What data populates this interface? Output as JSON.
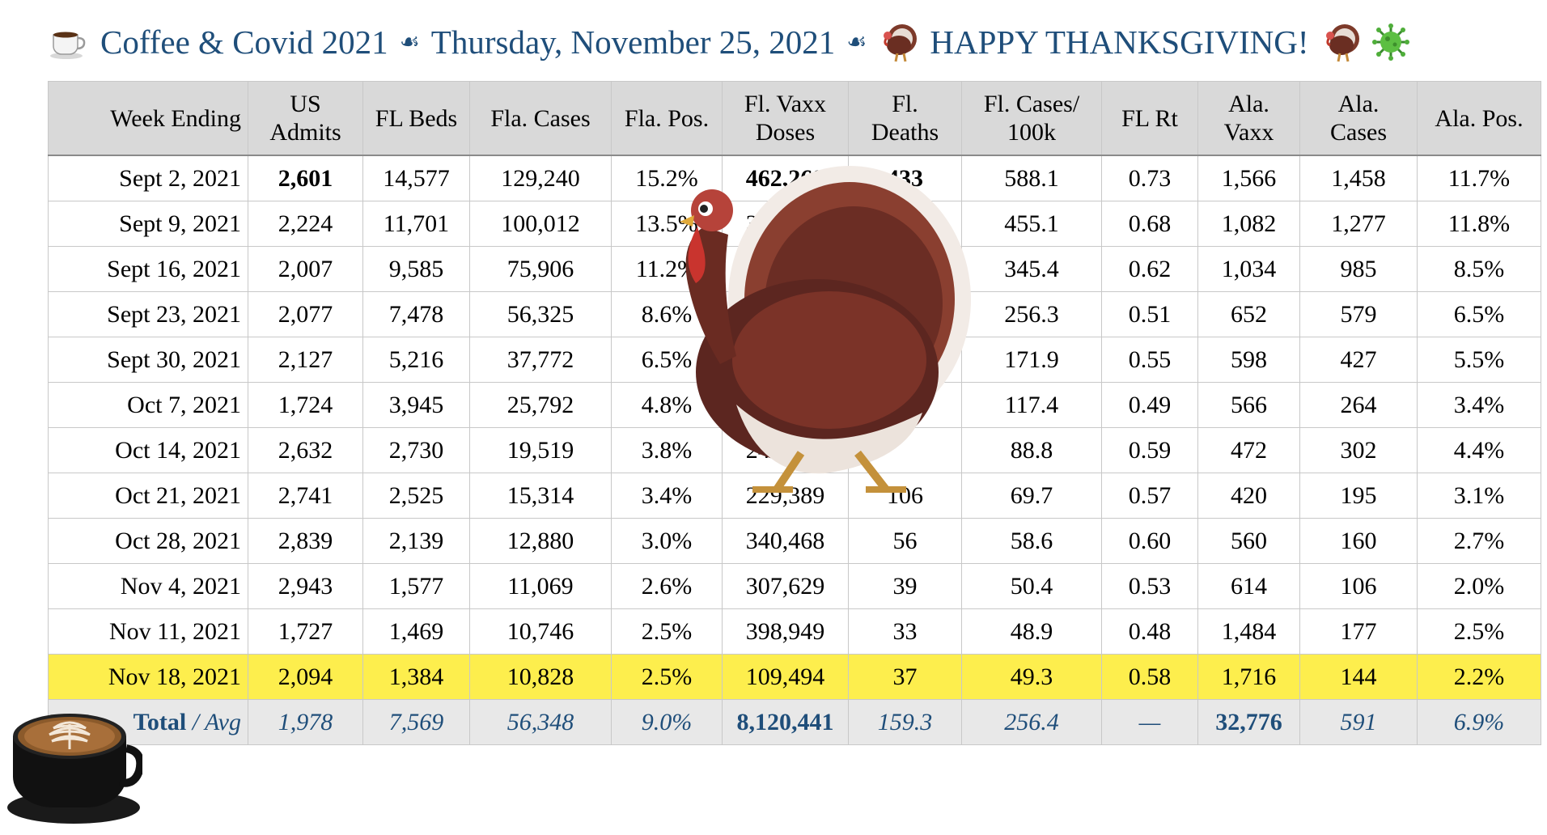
{
  "title": {
    "cup_icon": "coffee-cup-icon",
    "part1": "Coffee & Covid 2021",
    "sep1": "☙",
    "part2": "Thursday, November 25, 2021",
    "sep2": "☙",
    "turkey_icon": "turkey-icon",
    "part3": "HAPPY THANKSGIVING!",
    "virus_icon": "virus-icon",
    "color": "#1f4e7a"
  },
  "table": {
    "headers": [
      [
        "Week Ending"
      ],
      [
        "US",
        "Admits"
      ],
      [
        "FL Beds"
      ],
      [
        "Fla. Cases"
      ],
      [
        "Fla. Pos."
      ],
      [
        "Fl. Vaxx",
        "Doses"
      ],
      [
        "Fl.",
        "Deaths"
      ],
      [
        "Fl. Cases/",
        "100k"
      ],
      [
        "FL Rt"
      ],
      [
        "Ala.",
        "Vaxx"
      ],
      [
        "Ala.",
        "Cases"
      ],
      [
        "Ala. Pos."
      ]
    ],
    "rows": [
      [
        "Sept 2, 2021",
        "2,601",
        "14,577",
        "129,240",
        "15.2%",
        "462,269",
        "433",
        "588.1",
        "0.73",
        "1,566",
        "1,458",
        "11.7%"
      ],
      [
        "Sept 9, 2021",
        "2,224",
        "11,701",
        "100,012",
        "13.5%",
        "349,845",
        "",
        "455.1",
        "0.68",
        "1,082",
        "1,277",
        "11.8%"
      ],
      [
        "Sept 16, 2021",
        "2,007",
        "9,585",
        "75,906",
        "11.2%",
        "",
        "",
        "345.4",
        "0.62",
        "1,034",
        "985",
        "8.5%"
      ],
      [
        "Sept 23, 2021",
        "2,077",
        "7,478",
        "56,325",
        "8.6%",
        "",
        "",
        "256.3",
        "0.51",
        "652",
        "579",
        "6.5%"
      ],
      [
        "Sept 30, 2021",
        "2,127",
        "5,216",
        "37,772",
        "6.5%",
        "",
        "",
        "171.9",
        "0.55",
        "598",
        "427",
        "5.5%"
      ],
      [
        "Oct 7, 2021",
        "1,724",
        "3,945",
        "25,792",
        "4.8%",
        "",
        "",
        "117.4",
        "0.49",
        "566",
        "264",
        "3.4%"
      ],
      [
        "Oct 14, 2021",
        "2,632",
        "2,730",
        "19,519",
        "3.8%",
        "243,220",
        "",
        "88.8",
        "0.59",
        "472",
        "302",
        "4.4%"
      ],
      [
        "Oct 21, 2021",
        "2,741",
        "2,525",
        "15,314",
        "3.4%",
        "229,389",
        "106",
        "69.7",
        "0.57",
        "420",
        "195",
        "3.1%"
      ],
      [
        "Oct 28, 2021",
        "2,839",
        "2,139",
        "12,880",
        "3.0%",
        "340,468",
        "56",
        "58.6",
        "0.60",
        "560",
        "160",
        "2.7%"
      ],
      [
        "Nov 4, 2021",
        "2,943",
        "1,577",
        "11,069",
        "2.6%",
        "307,629",
        "39",
        "50.4",
        "0.53",
        "614",
        "106",
        "2.0%"
      ],
      [
        "Nov 11, 2021",
        "1,727",
        "1,469",
        "10,746",
        "2.5%",
        "398,949",
        "33",
        "48.9",
        "0.48",
        "1,484",
        "177",
        "2.5%"
      ],
      [
        "Nov 18, 2021",
        "2,094",
        "1,384",
        "10,828",
        "2.5%",
        "109,494",
        "37",
        "49.3",
        "0.58",
        "1,716",
        "144",
        "2.2%"
      ]
    ],
    "footer": {
      "total_label": "Total",
      "avg_label": "/ Avg",
      "values": [
        "1,978",
        "7,569",
        "56,348",
        "9.0%",
        "8,120,441",
        "159.3",
        "256.4",
        "—",
        "32,776",
        "591",
        "6.9%"
      ]
    },
    "highlight_color": "#fdee4d",
    "header_bg": "#d9d9d9",
    "footer_text_color": "#1f4e7a"
  },
  "overlays": {
    "turkey": "turkey-icon",
    "coffee": "coffee-cup-photo"
  }
}
